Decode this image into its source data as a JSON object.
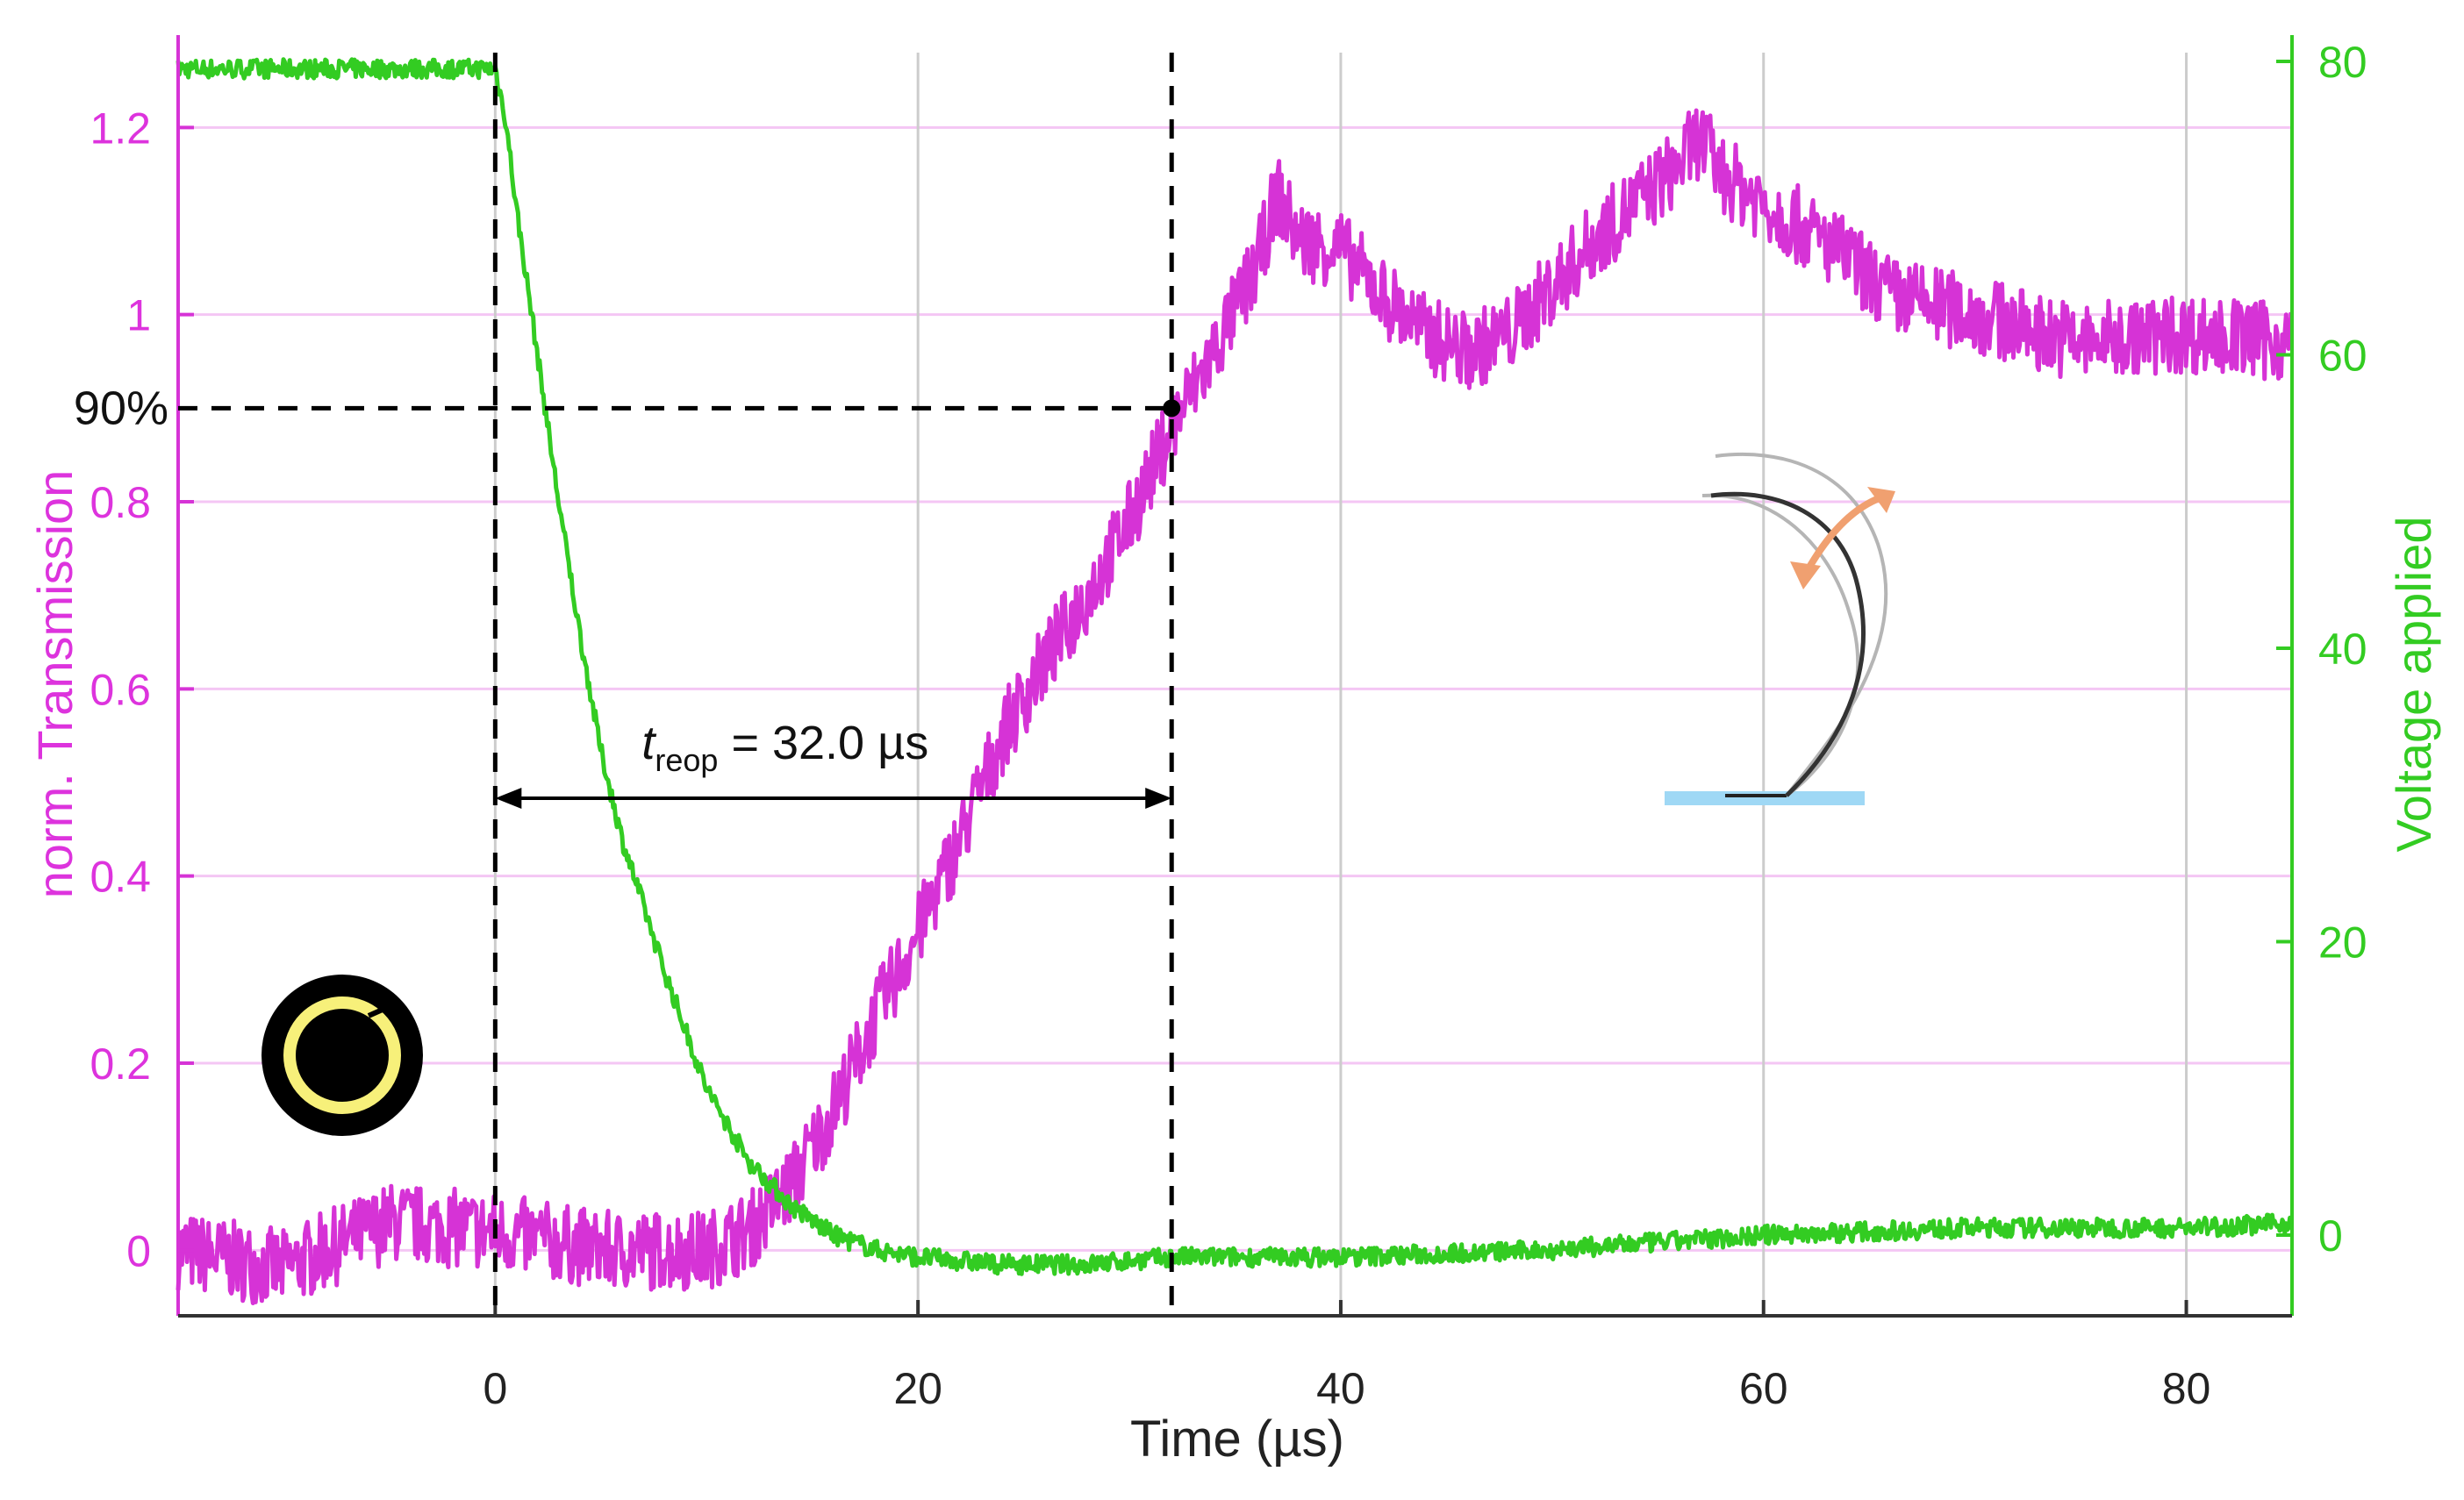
{
  "chart_data": {
    "type": "line",
    "xlabel": "Time (µs)",
    "ylabel_left": "norm. Transmission",
    "ylabel_right": "Voltage applied",
    "xlim": [
      -15,
      85
    ],
    "ylim_left": [
      -0.07,
      1.28
    ],
    "ylim_right": [
      -5.5,
      80.6
    ],
    "x_ticks": [
      0,
      20,
      40,
      60,
      80
    ],
    "y_left_ticks": [
      0,
      0.2,
      0.4,
      0.6,
      0.8,
      1,
      1.2
    ],
    "y_right_ticks": [
      0,
      20,
      40,
      60,
      80
    ],
    "grid": true,
    "colors": {
      "transmission": "#d633d6",
      "voltage": "#33cc22",
      "grid_h": "#f4c6f4",
      "grid_v": "#cccccc",
      "markers": "#000000"
    },
    "series": [
      {
        "name": "norm. Transmission",
        "axis": "left",
        "color": "#d633d6",
        "x": [
          -15,
          -10,
          -5,
          0,
          5,
          10,
          12,
          14,
          16,
          18,
          20,
          22,
          24,
          26,
          28,
          30,
          32,
          34,
          36,
          37,
          38,
          40,
          42,
          44,
          46,
          48,
          50,
          52,
          54,
          56,
          57,
          58,
          60,
          62,
          64,
          66,
          70,
          75,
          80,
          85
        ],
        "y": [
          0.0,
          -0.02,
          0.03,
          0.02,
          0.0,
          0.0,
          0.02,
          0.07,
          0.15,
          0.25,
          0.34,
          0.44,
          0.55,
          0.63,
          0.7,
          0.78,
          0.88,
          0.96,
          1.05,
          1.13,
          1.08,
          1.07,
          1.02,
          0.98,
          0.96,
          0.98,
          1.03,
          1.08,
          1.12,
          1.16,
          1.19,
          1.15,
          1.12,
          1.09,
          1.06,
          1.02,
          1.0,
          0.97,
          0.98,
          0.97
        ]
      },
      {
        "name": "Voltage applied",
        "axis": "right",
        "color": "#33cc22",
        "x": [
          -15,
          -10,
          -5,
          0,
          0.5,
          1,
          2,
          3,
          4,
          5,
          6,
          8,
          10,
          12,
          14,
          16,
          18,
          20,
          24,
          28,
          32,
          40,
          50,
          60,
          70,
          80,
          85
        ],
        "y": [
          79.5,
          79.5,
          79.5,
          79.5,
          76,
          70,
          60,
          50,
          41,
          33,
          27,
          18,
          10,
          5,
          2,
          0,
          -1,
          -1.5,
          -2,
          -2,
          -1.5,
          -1.5,
          -1,
          0,
          0.5,
          0.5,
          0.8
        ]
      }
    ],
    "annotations": {
      "level_label": "90%",
      "level_value": 0.9,
      "t_start": 0,
      "t_end": 32.0,
      "interval_symbol": "t",
      "interval_subscript": "reop",
      "interval_text": " = 32.0 µs"
    }
  }
}
